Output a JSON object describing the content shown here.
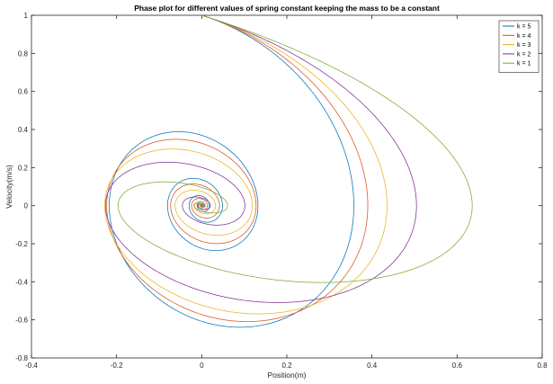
{
  "chart_data": {
    "type": "line",
    "title": "Phase plot for different values of  spring constant keeping the mass to be a constant",
    "xlabel": "Position(m)",
    "ylabel": "Velocity(m/s)",
    "xlim": [
      -0.4,
      0.8
    ],
    "ylim": [
      -0.8,
      1
    ],
    "xticks": [
      -0.4,
      -0.2,
      0,
      0.2,
      0.4,
      0.6,
      0.8
    ],
    "xtick_labels": [
      "-0.4",
      "-0.2",
      "0",
      "0.2",
      "0.4",
      "0.6",
      "0.8"
    ],
    "yticks": [
      -0.8,
      -0.6,
      -0.4,
      -0.2,
      0,
      0.2,
      0.4,
      0.6,
      0.8,
      1
    ],
    "ytick_labels": [
      "-0.8",
      "-0.6",
      "-0.4",
      "-0.2",
      "0",
      "0.2",
      "0.4",
      "0.6",
      "0.8",
      "1"
    ],
    "grid": false,
    "legend_position": "top-right",
    "initial_state": {
      "x": 0,
      "v": 1
    },
    "series": [
      {
        "name": "k = 5",
        "color": "#0072BD",
        "k": 5
      },
      {
        "name": "k = 4",
        "color": "#D95319",
        "k": 4
      },
      {
        "name": "k = 3",
        "color": "#EDB120",
        "k": 3
      },
      {
        "name": "k = 2",
        "color": "#7E2F8E",
        "k": 2
      },
      {
        "name": "k = 1",
        "color": "#77AC30",
        "k": 1
      }
    ]
  }
}
